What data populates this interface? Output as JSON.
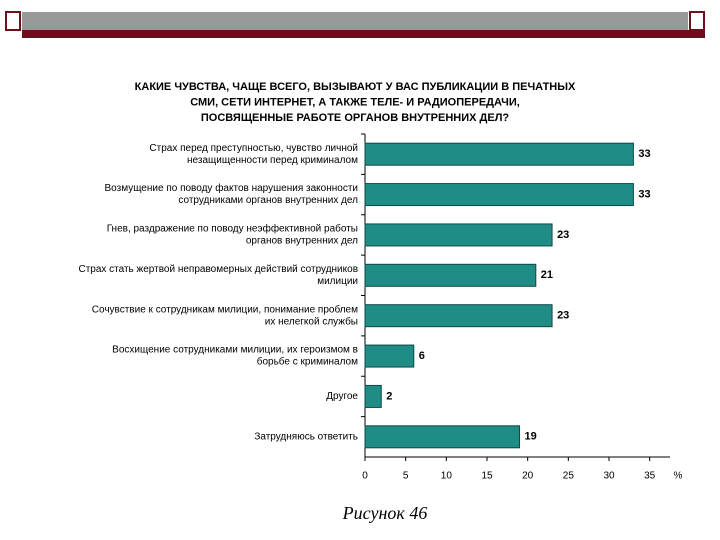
{
  "chart_data": {
    "type": "barh",
    "title": [
      "КАКИЕ ЧУВСТВА, ЧАЩЕ ВСЕГО, ВЫЗЫВАЮТ У ВАС ПУБЛИКАЦИИ В ПЕЧАТНЫХ",
      "СМИ, СЕТИ ИНТЕРНЕТ, А  ТАКЖЕ ТЕЛЕ- И РАДИОПЕРЕДАЧИ,",
      "ПОСВЯЩЕННЫЕ РАБОТЕ ОРГАНОВ ВНУТРЕННИХ ДЕЛ?"
    ],
    "categories": [
      [
        "Страх перед преступностью, чувство личной",
        "незащищенности перед криминалом"
      ],
      [
        "Возмущение по поводу фактов нарушения законности",
        "сотрудниками органов внутренних дел"
      ],
      [
        "Гнев, раздражение по поводу неэффективной работы",
        "органов внутренних дел"
      ],
      [
        "Страх стать жертвой неправомерных действий сотрудников",
        "милиции"
      ],
      [
        "Сочувствие  к сотрудникам милиции, понимание проблем",
        "их нелегкой службы"
      ],
      [
        "Восхищение сотрудниками милиции, их героизмом в",
        "борьбе с криминалом"
      ],
      [
        "Другое"
      ],
      [
        "Затрудняюсь ответить"
      ]
    ],
    "values": [
      33,
      33,
      23,
      21,
      23,
      6,
      2,
      19
    ],
    "color": "#1f8c86",
    "xlim": [
      0,
      37.5
    ],
    "xticks": [
      0,
      5,
      10,
      15,
      20,
      25,
      30,
      35
    ],
    "x_unit": "%",
    "caption": "Рисунок 46"
  }
}
